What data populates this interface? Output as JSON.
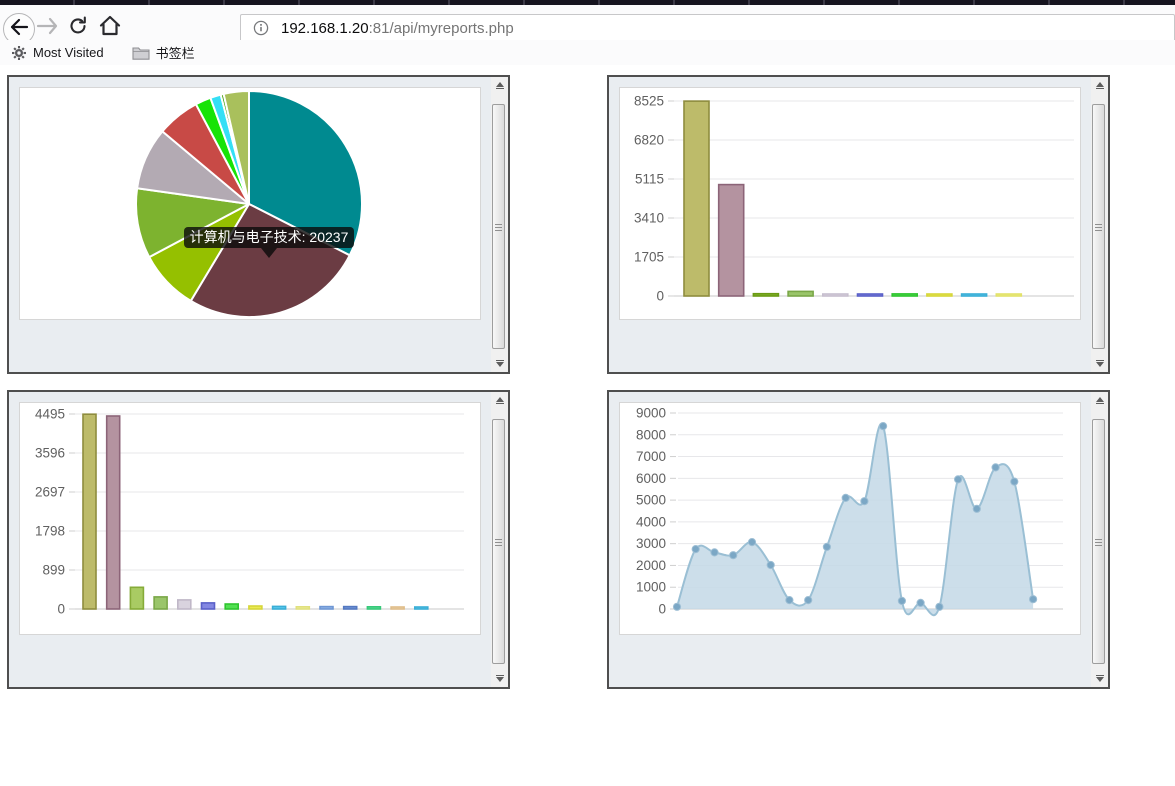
{
  "browser": {
    "url_host": "192.168.1.20",
    "url_path": ":81/api/myreports.php",
    "toolbar_icons": [
      "back-icon",
      "forward-icon",
      "refresh-icon",
      "home-icon",
      "info-icon"
    ],
    "bookmarks": [
      {
        "icon": "gear-icon",
        "label": "Most Visited"
      },
      {
        "icon": "folder-icon",
        "label": "书签栏"
      }
    ]
  },
  "chart_data": [
    {
      "type": "pie",
      "title": "",
      "legend": "off",
      "tooltip": "计算机与电子技术: 20237",
      "tooltip_value": 20237,
      "tooltip_label": "计算机与电子技术",
      "slices": [
        {
          "color": "#008a90",
          "start_deg": 0,
          "end_deg": 117
        },
        {
          "color": "#6b3c43",
          "start_deg": 117,
          "end_deg": 211
        },
        {
          "color": "#95c000",
          "start_deg": 211,
          "end_deg": 242
        },
        {
          "color": "#7db32f",
          "start_deg": 242,
          "end_deg": 278
        },
        {
          "color": "#b3aab3",
          "start_deg": 278,
          "end_deg": 310
        },
        {
          "color": "#c84a46",
          "start_deg": 310,
          "end_deg": 332
        },
        {
          "color": "#17e307",
          "start_deg": 332,
          "end_deg": 340
        },
        {
          "color": "#35dff5",
          "start_deg": 340,
          "end_deg": 345.5
        },
        {
          "color": "#3f9b00",
          "start_deg": 345.5,
          "end_deg": 347
        },
        {
          "color": "#a9c05c",
          "start_deg": 347,
          "end_deg": 360
        }
      ]
    },
    {
      "type": "bar",
      "title": "",
      "grid": "horizontal",
      "yticks": [
        0,
        1705,
        3410,
        5115,
        6820,
        8525
      ],
      "ylim": [
        0,
        8525
      ],
      "values": [
        8520,
        4870,
        100,
        200,
        60,
        80,
        90,
        80,
        70,
        40
      ],
      "bar_colors": [
        {
          "fill": "#bdbb6a",
          "stroke": "#8e8c3e"
        },
        {
          "fill": "#b493a0",
          "stroke": "#8c6478"
        },
        {
          "fill": "#85b52e",
          "stroke": "#6a9a14"
        },
        {
          "fill": "#9ac56a",
          "stroke": "#7aa748"
        },
        {
          "fill": "#ded8e2",
          "stroke": "#c6bece"
        },
        {
          "fill": "#8387e2",
          "stroke": "#5a60c8"
        },
        {
          "fill": "#52e052",
          "stroke": "#2fc42f"
        },
        {
          "fill": "#ebeb52",
          "stroke": "#d6d63a"
        },
        {
          "fill": "#5bc9ee",
          "stroke": "#3aaed6"
        },
        {
          "fill": "#f1f185",
          "stroke": "#e2e26a"
        }
      ]
    },
    {
      "type": "bar",
      "title": "",
      "grid": "horizontal",
      "yticks": [
        0,
        899,
        1798,
        2697,
        3596,
        4495
      ],
      "ylim": [
        0,
        4495
      ],
      "values": [
        4490,
        4450,
        500,
        280,
        210,
        140,
        115,
        70,
        60,
        50,
        55,
        55,
        50,
        40,
        45
      ],
      "bar_colors": [
        {
          "fill": "#bdbb6a",
          "stroke": "#8e8c3e"
        },
        {
          "fill": "#b493a0",
          "stroke": "#8c6478"
        },
        {
          "fill": "#a9cb63",
          "stroke": "#86ab38"
        },
        {
          "fill": "#9ac56a",
          "stroke": "#7aa748"
        },
        {
          "fill": "#d9d3de",
          "stroke": "#c0b8c8"
        },
        {
          "fill": "#8387e2",
          "stroke": "#5a60c8"
        },
        {
          "fill": "#52e052",
          "stroke": "#2fc42f"
        },
        {
          "fill": "#ebeb52",
          "stroke": "#d6d63a"
        },
        {
          "fill": "#5bc9ee",
          "stroke": "#3aaed6"
        },
        {
          "fill": "#f0f09a",
          "stroke": "#e0e07e"
        },
        {
          "fill": "#92b7ea",
          "stroke": "#6f97d4"
        },
        {
          "fill": "#7398da",
          "stroke": "#5478c0"
        },
        {
          "fill": "#5ce29a",
          "stroke": "#38c87a"
        },
        {
          "fill": "#f0d6ac",
          "stroke": "#dfbd8a"
        },
        {
          "fill": "#5bc9ee",
          "stroke": "#3aaed6"
        }
      ]
    },
    {
      "type": "area",
      "title": "",
      "grid": "horizontal",
      "yticks": [
        0,
        1000,
        2000,
        3000,
        4000,
        5000,
        6000,
        7000,
        8000,
        9000
      ],
      "ylim": [
        0,
        9000
      ],
      "values": [
        100,
        2750,
        2600,
        2470,
        3070,
        2020,
        410,
        410,
        2850,
        5100,
        4950,
        8400,
        370,
        280,
        100,
        5950,
        4600,
        6500,
        5850,
        450
      ],
      "colors": {
        "fill": "#c3d8e6",
        "line": "#9abfd4",
        "marker_fill": "#7ba7c5",
        "marker_stroke": "#9dbed4"
      }
    }
  ]
}
